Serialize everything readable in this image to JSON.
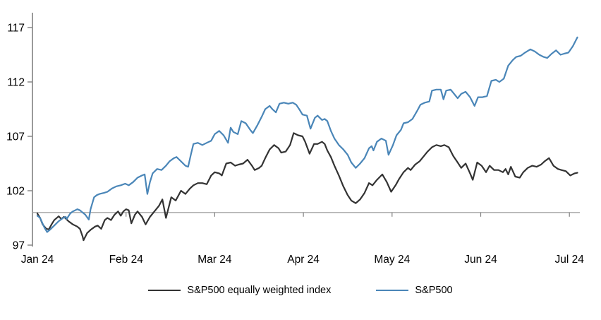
{
  "chart_data": {
    "type": "line",
    "title": "",
    "xlabel": "",
    "ylabel": "",
    "grid": "off",
    "legend_position": "bottom-center",
    "x_axis": {
      "tick_labels": [
        "Jan 24",
        "Feb 24",
        "Mar 24",
        "Apr 24",
        "May 24",
        "Jun 24",
        "Jul 24"
      ],
      "tick_positions_months": [
        0,
        1,
        2,
        3,
        4,
        5,
        6
      ],
      "unit": "month (2024), indexed daily"
    },
    "y_axis": {
      "ticks": [
        97,
        102,
        107,
        112,
        117
      ],
      "range": [
        97,
        117.5
      ],
      "baseline_value": 100
    },
    "series": [
      {
        "name": "S&P500 equally weighted index",
        "color": "#333333",
        "points": [
          [
            0.0,
            99.9
          ],
          [
            0.03,
            99.5
          ],
          [
            0.06,
            98.9
          ],
          [
            0.1,
            98.5
          ],
          [
            0.13,
            98.45
          ],
          [
            0.16,
            98.9
          ],
          [
            0.19,
            99.3
          ],
          [
            0.24,
            99.65
          ],
          [
            0.27,
            99.4
          ],
          [
            0.3,
            99.6
          ],
          [
            0.35,
            99.2
          ],
          [
            0.4,
            98.9
          ],
          [
            0.45,
            98.7
          ],
          [
            0.48,
            98.5
          ],
          [
            0.51,
            97.8
          ],
          [
            0.52,
            97.45
          ],
          [
            0.56,
            98.1
          ],
          [
            0.6,
            98.4
          ],
          [
            0.65,
            98.7
          ],
          [
            0.68,
            98.8
          ],
          [
            0.72,
            98.5
          ],
          [
            0.76,
            99.3
          ],
          [
            0.79,
            99.5
          ],
          [
            0.83,
            99.3
          ],
          [
            0.87,
            99.8
          ],
          [
            0.91,
            100.1
          ],
          [
            0.94,
            99.7
          ],
          [
            0.97,
            100.1
          ],
          [
            1.0,
            100.3
          ],
          [
            1.03,
            100.2
          ],
          [
            1.06,
            99.0
          ],
          [
            1.1,
            99.8
          ],
          [
            1.13,
            100.1
          ],
          [
            1.18,
            99.6
          ],
          [
            1.22,
            98.9
          ],
          [
            1.27,
            99.6
          ],
          [
            1.32,
            100.1
          ],
          [
            1.37,
            100.6
          ],
          [
            1.41,
            101.2
          ],
          [
            1.45,
            99.5
          ],
          [
            1.51,
            101.4
          ],
          [
            1.56,
            101.1
          ],
          [
            1.62,
            102.0
          ],
          [
            1.67,
            101.7
          ],
          [
            1.72,
            102.2
          ],
          [
            1.76,
            102.5
          ],
          [
            1.81,
            102.7
          ],
          [
            1.86,
            102.7
          ],
          [
            1.91,
            102.6
          ],
          [
            1.96,
            103.4
          ],
          [
            2.0,
            103.7
          ],
          [
            2.05,
            103.6
          ],
          [
            2.08,
            103.4
          ],
          [
            2.13,
            104.5
          ],
          [
            2.18,
            104.6
          ],
          [
            2.23,
            104.3
          ],
          [
            2.27,
            104.4
          ],
          [
            2.32,
            104.5
          ],
          [
            2.37,
            104.85
          ],
          [
            2.42,
            104.3
          ],
          [
            2.45,
            103.9
          ],
          [
            2.5,
            104.1
          ],
          [
            2.53,
            104.3
          ],
          [
            2.57,
            105.0
          ],
          [
            2.62,
            105.8
          ],
          [
            2.67,
            106.2
          ],
          [
            2.72,
            105.9
          ],
          [
            2.75,
            105.5
          ],
          [
            2.8,
            105.6
          ],
          [
            2.85,
            106.2
          ],
          [
            2.89,
            107.3
          ],
          [
            2.94,
            107.1
          ],
          [
            2.99,
            107.0
          ],
          [
            3.02,
            106.5
          ],
          [
            3.07,
            105.4
          ],
          [
            3.12,
            106.3
          ],
          [
            3.16,
            106.3
          ],
          [
            3.21,
            106.5
          ],
          [
            3.24,
            106.3
          ],
          [
            3.27,
            105.7
          ],
          [
            3.31,
            105.1
          ],
          [
            3.35,
            104.3
          ],
          [
            3.4,
            103.4
          ],
          [
            3.45,
            102.4
          ],
          [
            3.5,
            101.6
          ],
          [
            3.54,
            101.1
          ],
          [
            3.59,
            100.85
          ],
          [
            3.64,
            101.2
          ],
          [
            3.69,
            101.8
          ],
          [
            3.74,
            102.7
          ],
          [
            3.78,
            102.5
          ],
          [
            3.83,
            103.0
          ],
          [
            3.89,
            103.5
          ],
          [
            3.94,
            102.8
          ],
          [
            3.99,
            101.9
          ],
          [
            4.04,
            102.5
          ],
          [
            4.08,
            103.1
          ],
          [
            4.13,
            103.7
          ],
          [
            4.18,
            104.1
          ],
          [
            4.21,
            103.9
          ],
          [
            4.26,
            104.4
          ],
          [
            4.31,
            104.7
          ],
          [
            4.36,
            105.2
          ],
          [
            4.4,
            105.6
          ],
          [
            4.45,
            106.0
          ],
          [
            4.5,
            106.2
          ],
          [
            4.55,
            106.1
          ],
          [
            4.59,
            106.2
          ],
          [
            4.64,
            106.0
          ],
          [
            4.69,
            105.2
          ],
          [
            4.74,
            104.6
          ],
          [
            4.78,
            104.1
          ],
          [
            4.83,
            104.5
          ],
          [
            4.88,
            103.6
          ],
          [
            4.91,
            103.0
          ],
          [
            4.96,
            104.6
          ],
          [
            5.01,
            104.3
          ],
          [
            5.06,
            103.7
          ],
          [
            5.1,
            104.3
          ],
          [
            5.15,
            103.9
          ],
          [
            5.2,
            103.9
          ],
          [
            5.25,
            103.7
          ],
          [
            5.28,
            104.0
          ],
          [
            5.31,
            103.5
          ],
          [
            5.34,
            104.2
          ],
          [
            5.39,
            103.3
          ],
          [
            5.44,
            103.2
          ],
          [
            5.48,
            103.7
          ],
          [
            5.53,
            104.1
          ],
          [
            5.58,
            104.3
          ],
          [
            5.63,
            104.2
          ],
          [
            5.68,
            104.4
          ],
          [
            5.72,
            104.7
          ],
          [
            5.77,
            105.0
          ],
          [
            5.82,
            104.3
          ],
          [
            5.87,
            104.0
          ],
          [
            5.91,
            103.9
          ],
          [
            5.96,
            103.8
          ],
          [
            6.01,
            103.4
          ],
          [
            6.06,
            103.6
          ],
          [
            6.09,
            103.65
          ]
        ]
      },
      {
        "name": "S&P500",
        "color": "#4a86b8",
        "points": [
          [
            0.0,
            99.7
          ],
          [
            0.03,
            99.5
          ],
          [
            0.08,
            98.6
          ],
          [
            0.11,
            98.2
          ],
          [
            0.14,
            98.4
          ],
          [
            0.19,
            98.8
          ],
          [
            0.24,
            99.2
          ],
          [
            0.29,
            99.5
          ],
          [
            0.32,
            99.6
          ],
          [
            0.33,
            99.4
          ],
          [
            0.37,
            99.9
          ],
          [
            0.4,
            100.1
          ],
          [
            0.45,
            100.3
          ],
          [
            0.48,
            100.2
          ],
          [
            0.51,
            100.0
          ],
          [
            0.54,
            99.8
          ],
          [
            0.58,
            99.35
          ],
          [
            0.6,
            100.3
          ],
          [
            0.64,
            101.4
          ],
          [
            0.67,
            101.6
          ],
          [
            0.7,
            101.7
          ],
          [
            0.75,
            101.8
          ],
          [
            0.79,
            101.9
          ],
          [
            0.84,
            102.2
          ],
          [
            0.89,
            102.4
          ],
          [
            0.94,
            102.5
          ],
          [
            0.99,
            102.65
          ],
          [
            1.03,
            102.5
          ],
          [
            1.08,
            102.8
          ],
          [
            1.13,
            103.2
          ],
          [
            1.18,
            103.4
          ],
          [
            1.21,
            103.5
          ],
          [
            1.24,
            101.7
          ],
          [
            1.27,
            102.8
          ],
          [
            1.3,
            103.6
          ],
          [
            1.35,
            104.0
          ],
          [
            1.4,
            103.9
          ],
          [
            1.45,
            104.3
          ],
          [
            1.49,
            104.7
          ],
          [
            1.54,
            105.0
          ],
          [
            1.57,
            105.1
          ],
          [
            1.62,
            104.7
          ],
          [
            1.67,
            104.3
          ],
          [
            1.7,
            104.2
          ],
          [
            1.73,
            105.3
          ],
          [
            1.76,
            106.3
          ],
          [
            1.81,
            106.4
          ],
          [
            1.86,
            106.2
          ],
          [
            1.91,
            106.4
          ],
          [
            1.96,
            106.6
          ],
          [
            2.0,
            107.2
          ],
          [
            2.05,
            107.5
          ],
          [
            2.1,
            107.1
          ],
          [
            2.15,
            106.4
          ],
          [
            2.18,
            107.8
          ],
          [
            2.21,
            107.4
          ],
          [
            2.26,
            107.2
          ],
          [
            2.3,
            108.4
          ],
          [
            2.35,
            108.2
          ],
          [
            2.4,
            107.6
          ],
          [
            2.43,
            107.3
          ],
          [
            2.48,
            108.0
          ],
          [
            2.53,
            108.8
          ],
          [
            2.57,
            109.5
          ],
          [
            2.62,
            109.8
          ],
          [
            2.65,
            109.5
          ],
          [
            2.69,
            109.2
          ],
          [
            2.73,
            110.0
          ],
          [
            2.78,
            110.1
          ],
          [
            2.83,
            110.0
          ],
          [
            2.88,
            110.1
          ],
          [
            2.92,
            109.9
          ],
          [
            2.96,
            109.4
          ],
          [
            2.99,
            109.0
          ],
          [
            3.04,
            108.9
          ],
          [
            3.08,
            107.7
          ],
          [
            3.13,
            108.7
          ],
          [
            3.16,
            108.9
          ],
          [
            3.21,
            108.5
          ],
          [
            3.24,
            108.6
          ],
          [
            3.27,
            108.4
          ],
          [
            3.31,
            107.5
          ],
          [
            3.35,
            106.8
          ],
          [
            3.4,
            106.2
          ],
          [
            3.45,
            105.8
          ],
          [
            3.5,
            105.3
          ],
          [
            3.54,
            104.6
          ],
          [
            3.59,
            104.1
          ],
          [
            3.64,
            104.5
          ],
          [
            3.69,
            105.0
          ],
          [
            3.74,
            105.9
          ],
          [
            3.77,
            106.1
          ],
          [
            3.79,
            105.7
          ],
          [
            3.83,
            106.5
          ],
          [
            3.88,
            106.8
          ],
          [
            3.93,
            106.6
          ],
          [
            3.96,
            105.3
          ],
          [
            4.01,
            106.2
          ],
          [
            4.05,
            107.1
          ],
          [
            4.1,
            107.6
          ],
          [
            4.13,
            108.2
          ],
          [
            4.18,
            108.3
          ],
          [
            4.23,
            108.6
          ],
          [
            4.28,
            109.3
          ],
          [
            4.32,
            109.9
          ],
          [
            4.37,
            110.1
          ],
          [
            4.42,
            110.2
          ],
          [
            4.45,
            111.2
          ],
          [
            4.5,
            111.3
          ],
          [
            4.55,
            111.3
          ],
          [
            4.58,
            110.4
          ],
          [
            4.61,
            111.2
          ],
          [
            4.66,
            111.3
          ],
          [
            4.7,
            110.9
          ],
          [
            4.74,
            110.5
          ],
          [
            4.78,
            110.9
          ],
          [
            4.83,
            111.1
          ],
          [
            4.88,
            110.6
          ],
          [
            4.93,
            109.8
          ],
          [
            4.97,
            110.6
          ],
          [
            5.02,
            110.6
          ],
          [
            5.07,
            110.7
          ],
          [
            5.12,
            112.1
          ],
          [
            5.17,
            112.2
          ],
          [
            5.21,
            112.0
          ],
          [
            5.26,
            112.3
          ],
          [
            5.31,
            113.5
          ],
          [
            5.36,
            114.0
          ],
          [
            5.4,
            114.3
          ],
          [
            5.45,
            114.4
          ],
          [
            5.5,
            114.7
          ],
          [
            5.56,
            115.0
          ],
          [
            5.61,
            114.8
          ],
          [
            5.66,
            114.5
          ],
          [
            5.71,
            114.3
          ],
          [
            5.75,
            114.2
          ],
          [
            5.8,
            114.6
          ],
          [
            5.85,
            114.9
          ],
          [
            5.9,
            114.5
          ],
          [
            5.94,
            114.6
          ],
          [
            5.99,
            114.7
          ],
          [
            6.04,
            115.3
          ],
          [
            6.09,
            116.1
          ]
        ]
      }
    ]
  },
  "legend": {
    "items": [
      {
        "label": "S&P500 equally weighted index",
        "color": "#333333"
      },
      {
        "label": "S&P500",
        "color": "#4a86b8"
      }
    ]
  },
  "colors": {
    "equal_weight_line": "#333333",
    "sp500_line": "#4a86b8",
    "axis": "#808080",
    "baseline": "#a6a6a6",
    "label_text": "#000000",
    "background": "#ffffff"
  }
}
